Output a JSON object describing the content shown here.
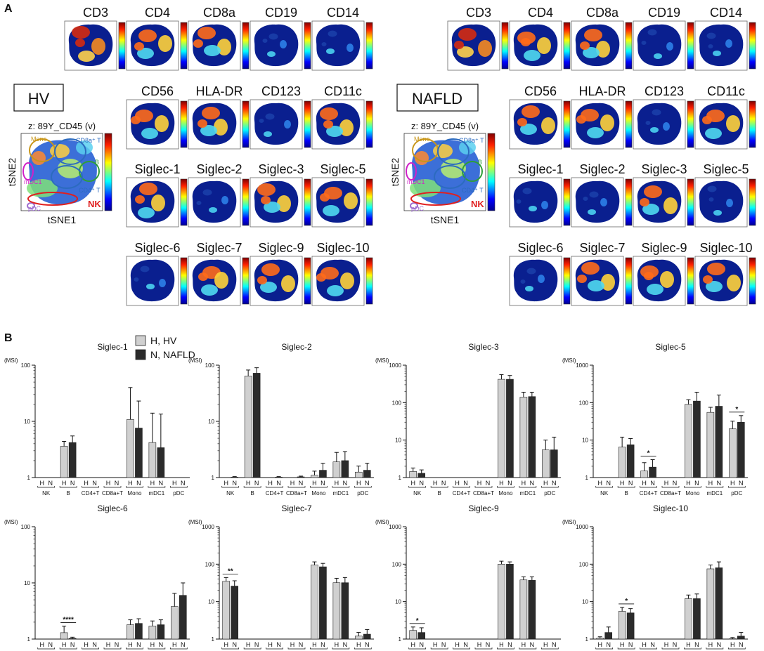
{
  "figure": {
    "panel_a_letter": "A",
    "panel_b_letter": "B",
    "colors": {
      "hv_bar": "#d0d0d0",
      "nafld_bar": "#2b2b2b",
      "outline": "#222222"
    }
  },
  "panel_a": {
    "groups": [
      {
        "label": "HV",
        "overview_title": "z: 89Y_CD45 (v)",
        "x_axis_label": "tSNE1",
        "y_axis_label": "tSNE2",
        "populations": [
          {
            "name": "Mono",
            "color": "#c8961a"
          },
          {
            "name": "CD8a⁺ T",
            "color": "#2c6bbf"
          },
          {
            "name": "B",
            "color": "#2e9e3a"
          },
          {
            "name": "mDC1",
            "color": "#d020c8"
          },
          {
            "name": "CD4⁺ T",
            "color": "#2c6bbf"
          },
          {
            "name": "pDC",
            "color": "#a070d0"
          },
          {
            "name": "NK",
            "color": "#e02020"
          }
        ],
        "markers": [
          {
            "name": "CD3",
            "expression": "high"
          },
          {
            "name": "CD4",
            "expression": "medium"
          },
          {
            "name": "CD8a",
            "expression": "medium"
          },
          {
            "name": "CD19",
            "expression": "low"
          },
          {
            "name": "CD14",
            "expression": "low"
          },
          {
            "name": "CD56",
            "expression": "medium"
          },
          {
            "name": "HLA-DR",
            "expression": "medium"
          },
          {
            "name": "CD123",
            "expression": "low"
          },
          {
            "name": "CD11c",
            "expression": "medium"
          },
          {
            "name": "Siglec-1",
            "expression": "medium"
          },
          {
            "name": "Siglec-2",
            "expression": "low"
          },
          {
            "name": "Siglec-3",
            "expression": "medium"
          },
          {
            "name": "Siglec-5",
            "expression": "medium"
          },
          {
            "name": "Siglec-6",
            "expression": "low"
          },
          {
            "name": "Siglec-7",
            "expression": "medium"
          },
          {
            "name": "Siglec-9",
            "expression": "medium"
          },
          {
            "name": "Siglec-10",
            "expression": "medium"
          }
        ]
      },
      {
        "label": "NAFLD",
        "overview_title": "z: 89Y_CD45 (v)",
        "x_axis_label": "tSNE1",
        "y_axis_label": "tSNE2",
        "populations": [
          {
            "name": "Mono",
            "color": "#c8961a"
          },
          {
            "name": "CD8a⁺ T",
            "color": "#2c6bbf"
          },
          {
            "name": "B",
            "color": "#2e9e3a"
          },
          {
            "name": "mDC1",
            "color": "#d020c8"
          },
          {
            "name": "CD4⁺ T",
            "color": "#2c6bbf"
          },
          {
            "name": "pDC",
            "color": "#a070d0"
          },
          {
            "name": "NK",
            "color": "#e02020"
          }
        ],
        "markers": [
          {
            "name": "CD3",
            "expression": "high"
          },
          {
            "name": "CD4",
            "expression": "medium"
          },
          {
            "name": "CD8a",
            "expression": "medium"
          },
          {
            "name": "CD19",
            "expression": "low"
          },
          {
            "name": "CD14",
            "expression": "low"
          },
          {
            "name": "CD56",
            "expression": "medium"
          },
          {
            "name": "HLA-DR",
            "expression": "medium"
          },
          {
            "name": "CD123",
            "expression": "low"
          },
          {
            "name": "CD11c",
            "expression": "medium"
          },
          {
            "name": "Siglec-1",
            "expression": "low"
          },
          {
            "name": "Siglec-2",
            "expression": "low"
          },
          {
            "name": "Siglec-3",
            "expression": "medium"
          },
          {
            "name": "Siglec-5",
            "expression": "low"
          },
          {
            "name": "Siglec-6",
            "expression": "low"
          },
          {
            "name": "Siglec-7",
            "expression": "medium"
          },
          {
            "name": "Siglec-9",
            "expression": "medium"
          },
          {
            "name": "Siglec-10",
            "expression": "medium"
          }
        ]
      }
    ]
  },
  "chart_data": [
    {
      "type": "bar",
      "scale": "log",
      "title": "Siglec-1",
      "ylabel": "(MSI)",
      "ylim": [
        1,
        100
      ],
      "yticks": [
        1,
        10,
        100
      ],
      "yticklabels": [
        "1",
        "10",
        "100"
      ],
      "categories": [
        "NK",
        "B",
        "CD4+T",
        "CD8a+T",
        "Mono",
        "mDC1",
        "pDC"
      ],
      "group_labels": [
        "H",
        "N"
      ],
      "series": [
        {
          "name": "H, HV",
          "values": [
            null,
            3.6,
            null,
            null,
            10.8,
            4.2,
            null
          ],
          "errors": [
            null,
            4.4,
            null,
            null,
            40,
            14,
            null
          ]
        },
        {
          "name": "N, NAFLD",
          "values": [
            null,
            4.2,
            null,
            null,
            7.6,
            3.4,
            null
          ],
          "errors": [
            null,
            5.5,
            null,
            null,
            23,
            13.5,
            null
          ]
        }
      ],
      "annotations": []
    },
    {
      "type": "bar",
      "scale": "log",
      "title": "Siglec-2",
      "ylabel": "(MSI)",
      "ylim": [
        1,
        100
      ],
      "yticks": [
        1,
        10,
        100
      ],
      "yticklabels": [
        "1",
        "10",
        "100"
      ],
      "categories": [
        "NK",
        "B",
        "CD4+T",
        "CD8a+T",
        "Mono",
        "mDC1",
        "pDC"
      ],
      "group_labels": [
        "H",
        "N"
      ],
      "series": [
        {
          "name": "H, HV",
          "values": [
            null,
            64,
            null,
            null,
            1.1,
            1.9,
            1.25
          ],
          "errors": [
            null,
            82,
            null,
            null,
            1.3,
            2.8,
            1.6
          ]
        },
        {
          "name": "N, NAFLD",
          "values": [
            1.02,
            72,
            1.02,
            1.03,
            1.35,
            2.0,
            1.35
          ],
          "errors": [
            1.04,
            90,
            1.04,
            1.06,
            1.8,
            2.9,
            1.8
          ]
        }
      ],
      "annotations": []
    },
    {
      "type": "bar",
      "scale": "log",
      "title": "Siglec-3",
      "ylabel": "(MSI)",
      "ylim": [
        1,
        1000
      ],
      "yticks": [
        1,
        10,
        100,
        1000
      ],
      "yticklabels": [
        "1",
        "10",
        "100",
        "1000"
      ],
      "categories": [
        "NK",
        "B",
        "CD4+T",
        "CD8a+T",
        "Mono",
        "mDC1",
        "pDC"
      ],
      "group_labels": [
        "H",
        "N"
      ],
      "series": [
        {
          "name": "H, HV",
          "values": [
            1.45,
            null,
            null,
            null,
            420,
            140,
            5.5
          ],
          "errors": [
            1.8,
            null,
            null,
            null,
            560,
            190,
            10
          ]
        },
        {
          "name": "N, NAFLD",
          "values": [
            1.3,
            null,
            null,
            null,
            420,
            145,
            5.5
          ],
          "errors": [
            1.6,
            null,
            null,
            null,
            530,
            190,
            12
          ]
        }
      ],
      "annotations": []
    },
    {
      "type": "bar",
      "scale": "log",
      "title": "Siglec-5",
      "ylabel": "(MSI)",
      "ylim": [
        1,
        1000
      ],
      "yticks": [
        1,
        10,
        100,
        1000
      ],
      "yticklabels": [
        "1",
        "10",
        "100",
        "1000"
      ],
      "categories": [
        "NK",
        "B",
        "CD4+T",
        "CD8a+T",
        "Mono",
        "mDC1",
        "pDC"
      ],
      "group_labels": [
        "H",
        "N"
      ],
      "series": [
        {
          "name": "H, HV",
          "values": [
            null,
            6.5,
            1.5,
            null,
            90,
            55,
            20
          ],
          "errors": [
            null,
            12,
            2.5,
            null,
            120,
            75,
            32
          ]
        },
        {
          "name": "N, NAFLD",
          "values": [
            null,
            7.5,
            1.9,
            null,
            110,
            80,
            30
          ],
          "errors": [
            null,
            11,
            3,
            null,
            190,
            160,
            45
          ]
        }
      ],
      "annotations": [
        {
          "category": "CD4+T",
          "text": "*"
        },
        {
          "category": "pDC",
          "text": "*"
        }
      ]
    },
    {
      "type": "bar",
      "scale": "log",
      "title": "Siglec-6",
      "ylabel": "(MSI)",
      "ylim": [
        1,
        100
      ],
      "yticks": [
        1,
        10,
        100
      ],
      "yticklabels": [
        "1",
        "10",
        "100"
      ],
      "categories": [
        "NK",
        "B",
        "CD4+T",
        "CD8a+T",
        "Mono",
        "mDC1",
        "pDC"
      ],
      "group_labels": [
        "H",
        "N"
      ],
      "series": [
        {
          "name": "H, HV",
          "values": [
            null,
            1.3,
            null,
            null,
            1.8,
            1.7,
            3.8
          ],
          "errors": [
            null,
            1.7,
            null,
            null,
            2.2,
            2.1,
            6.5
          ]
        },
        {
          "name": "N, NAFLD",
          "values": [
            null,
            1.03,
            null,
            null,
            1.9,
            1.8,
            6.0
          ],
          "errors": [
            null,
            1.08,
            null,
            null,
            2.3,
            2.2,
            10
          ]
        }
      ],
      "annotations": [
        {
          "category": "B",
          "text": "****"
        }
      ]
    },
    {
      "type": "bar",
      "scale": "log",
      "title": "Siglec-7",
      "ylabel": "(MSI)",
      "ylim": [
        1,
        1000
      ],
      "yticks": [
        1,
        10,
        100,
        1000
      ],
      "yticklabels": [
        "1",
        "10",
        "100",
        "1000"
      ],
      "categories": [
        "NK",
        "B",
        "CD4+T",
        "CD8a+T",
        "Mono",
        "mDC1",
        "pDC"
      ],
      "group_labels": [
        "H",
        "N"
      ],
      "series": [
        {
          "name": "H, HV",
          "values": [
            35,
            null,
            null,
            null,
            95,
            32,
            1.2
          ],
          "errors": [
            44,
            null,
            null,
            null,
            115,
            42,
            1.5
          ]
        },
        {
          "name": "N, NAFLD",
          "values": [
            26,
            null,
            null,
            null,
            85,
            32,
            1.35
          ],
          "errors": [
            36,
            null,
            null,
            null,
            105,
            44,
            1.8
          ]
        }
      ],
      "annotations": [
        {
          "category": "NK",
          "text": "**"
        }
      ]
    },
    {
      "type": "bar",
      "scale": "log",
      "title": "Siglec-9",
      "ylabel": "(MSI)",
      "ylim": [
        1,
        1000
      ],
      "yticks": [
        1,
        10,
        100,
        1000
      ],
      "yticklabels": [
        "1",
        "10",
        "100",
        "1000"
      ],
      "categories": [
        "NK",
        "B",
        "CD4+T",
        "CD8a+T",
        "Mono",
        "mDC1",
        "pDC"
      ],
      "group_labels": [
        "H",
        "N"
      ],
      "series": [
        {
          "name": "H, HV",
          "values": [
            1.7,
            null,
            null,
            null,
            100,
            38,
            null
          ],
          "errors": [
            2.1,
            null,
            null,
            null,
            120,
            46,
            null
          ]
        },
        {
          "name": "N, NAFLD",
          "values": [
            1.5,
            null,
            null,
            null,
            100,
            37,
            null
          ],
          "errors": [
            2.0,
            null,
            null,
            null,
            115,
            46,
            null
          ]
        }
      ],
      "annotations": [
        {
          "category": "NK",
          "text": "*"
        }
      ]
    },
    {
      "type": "bar",
      "scale": "log",
      "title": "Siglec-10",
      "ylabel": "(MSI)",
      "ylim": [
        1,
        1000
      ],
      "yticks": [
        1,
        10,
        100,
        1000
      ],
      "yticklabels": [
        "1",
        "10",
        "100",
        "1000"
      ],
      "categories": [
        "NK",
        "B",
        "CD4+T",
        "CD8a+T",
        "Mono",
        "mDC1",
        "pDC"
      ],
      "group_labels": [
        "H",
        "N"
      ],
      "series": [
        {
          "name": "H, HV",
          "values": [
            1.05,
            5.5,
            null,
            null,
            12,
            75,
            1.02
          ],
          "errors": [
            1.15,
            7,
            null,
            null,
            15,
            95,
            1.1
          ]
        },
        {
          "name": "N, NAFLD",
          "values": [
            1.5,
            5.0,
            null,
            null,
            12,
            80,
            1.2
          ],
          "errors": [
            2.1,
            6.5,
            null,
            null,
            16,
            115,
            1.5
          ]
        }
      ],
      "annotations": [
        {
          "category": "B",
          "text": "*"
        }
      ]
    }
  ],
  "legend": {
    "items": [
      {
        "label": "H, HV",
        "color": "#d0d0d0"
      },
      {
        "label": "N, NAFLD",
        "color": "#2b2b2b"
      }
    ]
  }
}
